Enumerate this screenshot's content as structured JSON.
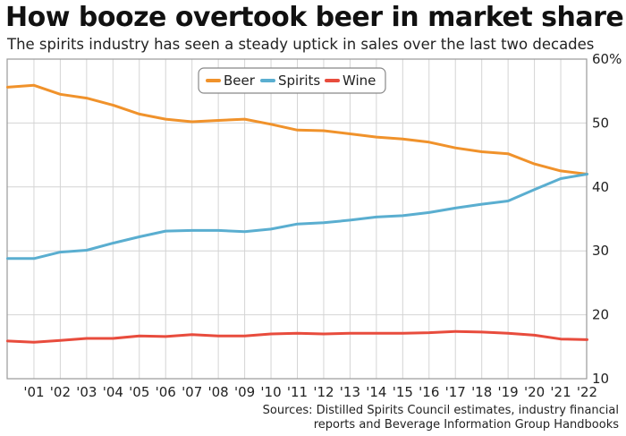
{
  "title": "How booze overtook beer in market share",
  "subtitle": "The spirits industry has seen a steady uptick in sales over the last two decades",
  "source_lines": [
    "Sources: Distilled Spirits Council estimates, industry financial",
    "reports and Beverage Information Group Handbooks"
  ],
  "chart_data": {
    "type": "line",
    "x": [
      "",
      "'01",
      "'02",
      "'03",
      "'04",
      "'05",
      "'06",
      "'07",
      "'08",
      "'09",
      "'10",
      "'11",
      "'12",
      "'13",
      "'14",
      "'15",
      "'16",
      "'17",
      "'18",
      "'19",
      "'20",
      "'21",
      "'22"
    ],
    "series": [
      {
        "name": "Beer",
        "color": "#f0922b",
        "values": [
          55.6,
          55.9,
          54.5,
          53.9,
          52.8,
          51.4,
          50.6,
          50.2,
          50.4,
          50.6,
          49.8,
          48.9,
          48.8,
          48.3,
          47.8,
          47.5,
          47.0,
          46.1,
          45.5,
          45.2,
          43.6,
          42.5,
          42.0
        ]
      },
      {
        "name": "Spirits",
        "color": "#5aaed0",
        "values": [
          28.8,
          28.8,
          29.8,
          30.1,
          31.2,
          32.2,
          33.1,
          33.2,
          33.2,
          33.0,
          33.4,
          34.2,
          34.4,
          34.8,
          35.3,
          35.5,
          36.0,
          36.7,
          37.3,
          37.8,
          39.6,
          41.3,
          42.0
        ]
      },
      {
        "name": "Wine",
        "color": "#e84c3d",
        "values": [
          15.9,
          15.7,
          16.0,
          16.3,
          16.3,
          16.7,
          16.6,
          16.9,
          16.7,
          16.7,
          17.0,
          17.1,
          17.0,
          17.1,
          17.1,
          17.1,
          17.2,
          17.4,
          17.3,
          17.1,
          16.8,
          16.2,
          16.1
        ]
      }
    ],
    "y_ticks": [
      {
        "value": 60,
        "label": "60%"
      },
      {
        "value": 50,
        "label": "50"
      },
      {
        "value": 40,
        "label": "40"
      },
      {
        "value": 30,
        "label": "30"
      },
      {
        "value": 20,
        "label": "20"
      },
      {
        "value": 10,
        "label": "10"
      }
    ],
    "ylim": [
      10,
      60
    ],
    "grid": true,
    "legend_position": "top-center",
    "axis_color": "#b5b5b5"
  }
}
